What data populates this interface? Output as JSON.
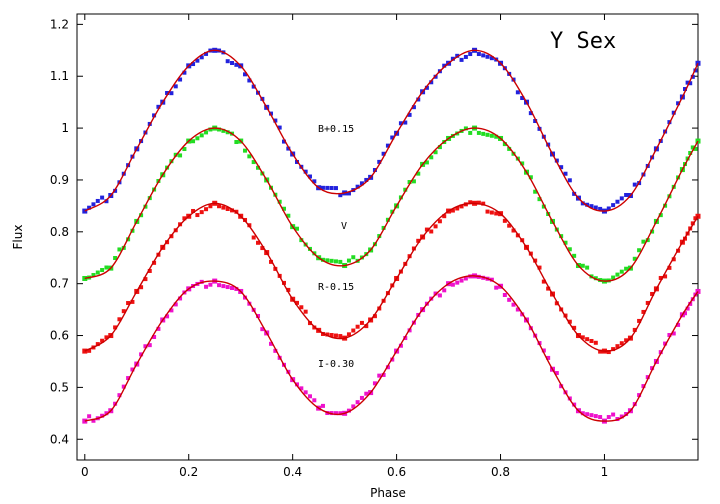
{
  "chart_data": {
    "type": "scatter",
    "title": "Y Sex",
    "xlabel": "Phase",
    "ylabel": "Flux",
    "xlim": [
      -0.015,
      1.18
    ],
    "ylim": [
      0.36,
      1.22
    ],
    "xticks": [
      "0",
      "0.2",
      "0.4",
      "0.6",
      "0.8",
      "1"
    ],
    "xtick_values": [
      0,
      0.2,
      0.4,
      0.6,
      0.8,
      1.0
    ],
    "yticks": [
      "0.4",
      "0.5",
      "0.6",
      "0.7",
      "0.8",
      "0.9",
      "1",
      "1.1",
      "1.2"
    ],
    "ytick_values": [
      0.4,
      0.5,
      0.6,
      0.7,
      0.8,
      0.9,
      1.0,
      1.1,
      1.2
    ],
    "grid": false,
    "model_color": "#cc0000",
    "series": [
      {
        "name": "B+0.15",
        "color": "#2222dd",
        "x": [
          0.0,
          0.05,
          0.1,
          0.15,
          0.2,
          0.25,
          0.3,
          0.35,
          0.4,
          0.45,
          0.5,
          0.55,
          0.6,
          0.65,
          0.7,
          0.75,
          0.8,
          0.85,
          0.9,
          0.95,
          1.0,
          1.05,
          1.1,
          1.15,
          1.18
        ],
        "y": [
          0.84,
          0.87,
          0.96,
          1.05,
          1.12,
          1.15,
          1.12,
          1.04,
          0.95,
          0.885,
          0.875,
          0.905,
          0.99,
          1.07,
          1.125,
          1.15,
          1.125,
          1.05,
          0.95,
          0.865,
          0.84,
          0.87,
          0.96,
          1.06,
          1.125
        ]
      },
      {
        "name": "V",
        "color": "#22dd22",
        "x": [
          0.0,
          0.05,
          0.1,
          0.15,
          0.2,
          0.25,
          0.3,
          0.35,
          0.4,
          0.45,
          0.5,
          0.55,
          0.6,
          0.65,
          0.7,
          0.75,
          0.8,
          0.85,
          0.9,
          0.95,
          1.0,
          1.05,
          1.1,
          1.15,
          1.18
        ],
        "y": [
          0.71,
          0.73,
          0.82,
          0.91,
          0.975,
          1.0,
          0.975,
          0.9,
          0.81,
          0.75,
          0.735,
          0.765,
          0.85,
          0.93,
          0.98,
          1.0,
          0.98,
          0.915,
          0.82,
          0.735,
          0.705,
          0.73,
          0.82,
          0.92,
          0.975
        ]
      },
      {
        "name": "R-0.15",
        "color": "#ee1111",
        "x": [
          0.0,
          0.05,
          0.1,
          0.15,
          0.2,
          0.25,
          0.3,
          0.35,
          0.4,
          0.45,
          0.5,
          0.55,
          0.6,
          0.65,
          0.7,
          0.75,
          0.8,
          0.85,
          0.9,
          0.95,
          1.0,
          1.05,
          1.1,
          1.15,
          1.18
        ],
        "y": [
          0.57,
          0.6,
          0.685,
          0.77,
          0.83,
          0.855,
          0.83,
          0.76,
          0.67,
          0.61,
          0.595,
          0.63,
          0.71,
          0.79,
          0.84,
          0.855,
          0.835,
          0.77,
          0.68,
          0.6,
          0.57,
          0.595,
          0.69,
          0.78,
          0.83
        ]
      },
      {
        "name": "I-0.30",
        "color": "#ee11cc",
        "x": [
          0.0,
          0.05,
          0.1,
          0.15,
          0.2,
          0.25,
          0.3,
          0.35,
          0.4,
          0.45,
          0.5,
          0.55,
          0.6,
          0.65,
          0.7,
          0.75,
          0.8,
          0.85,
          0.9,
          0.95,
          1.0,
          1.05,
          1.1,
          1.15,
          1.18
        ],
        "y": [
          0.435,
          0.455,
          0.545,
          0.63,
          0.69,
          0.705,
          0.685,
          0.605,
          0.515,
          0.46,
          0.45,
          0.49,
          0.57,
          0.65,
          0.7,
          0.715,
          0.695,
          0.63,
          0.535,
          0.455,
          0.435,
          0.455,
          0.55,
          0.64,
          0.685
        ]
      }
    ]
  }
}
